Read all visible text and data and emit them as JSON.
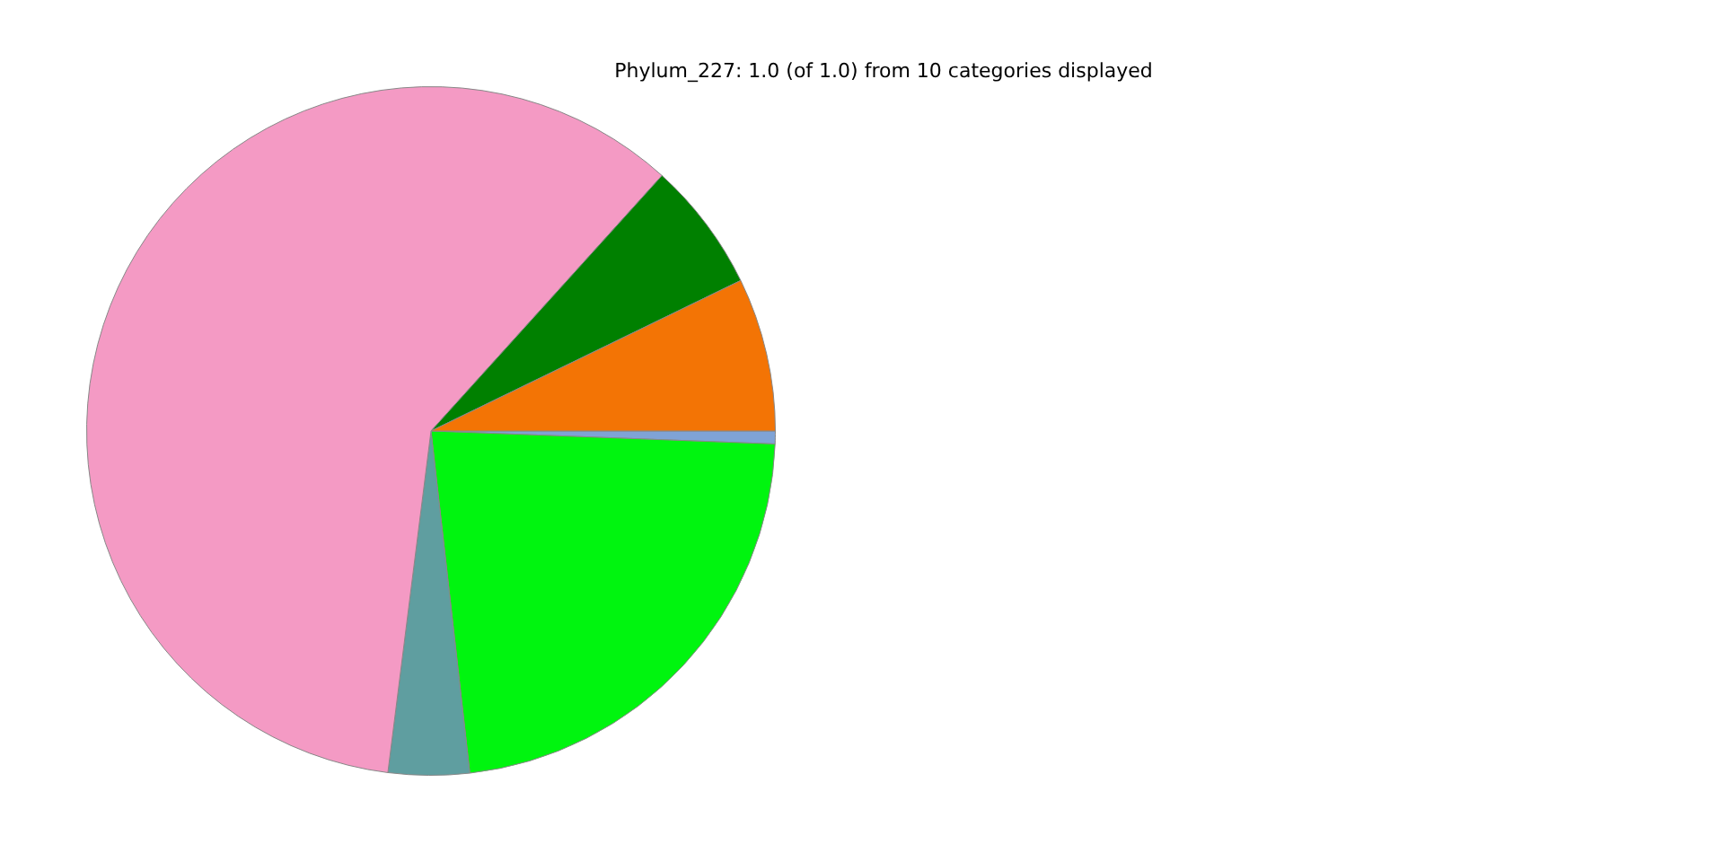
{
  "chart_data": {
    "type": "pie",
    "title": "Phylum_227: 1.0 (of 1.0) from 10 categories displayed",
    "categories": [
      null,
      null,
      null,
      null,
      null,
      null
    ],
    "values": [
      0.6,
      22.6,
      3.8,
      59.7,
      6.1,
      7.2
    ],
    "colors": [
      "#7fa3d6",
      "#00f50f",
      "#5f9ea0",
      "#f49ac4",
      "#008000",
      "#f37405"
    ],
    "legend": false
  }
}
